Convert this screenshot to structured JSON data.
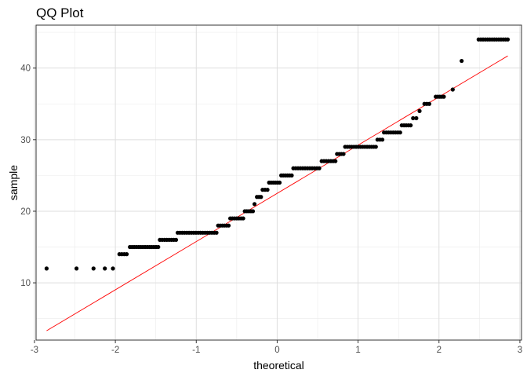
{
  "chart_data": {
    "type": "scatter",
    "title": "QQ Plot",
    "xlabel": "theoretical",
    "ylabel": "sample",
    "xlim": [
      -2.98,
      3.02
    ],
    "ylim": [
      2.0,
      46.0
    ],
    "x_ticks": [
      -3,
      -2,
      -1,
      0,
      1,
      2,
      3
    ],
    "y_ticks": [
      10,
      20,
      30,
      40
    ],
    "grid": true,
    "legend": "none",
    "point_color": "#000000",
    "line_color": "#ff0000",
    "reference_line": {
      "x": [
        -2.85,
        2.85
      ],
      "y": [
        3.3,
        41.7
      ]
    },
    "series": [
      {
        "clusters": [
          {
            "x": [
              -2.85,
              -2.85
            ],
            "y": 12
          },
          {
            "x": [
              -2.48,
              -2.48
            ],
            "y": 12
          },
          {
            "x": [
              -2.27,
              -2.27
            ],
            "y": 12
          },
          {
            "x": [
              -2.13,
              -2.13
            ],
            "y": 12
          },
          {
            "x": [
              -2.03,
              -2.03
            ],
            "y": 12
          },
          {
            "x": [
              -1.95,
              -1.86
            ],
            "y": 14
          },
          {
            "x": [
              -1.82,
              -1.47
            ],
            "y": 15
          },
          {
            "x": [
              -1.45,
              -1.25
            ],
            "y": 16
          },
          {
            "x": [
              -1.23,
              -0.75
            ],
            "y": 17
          },
          {
            "x": [
              -0.73,
              -0.6
            ],
            "y": 18
          },
          {
            "x": [
              -0.58,
              -0.42
            ],
            "y": 19
          },
          {
            "x": [
              -0.4,
              -0.3
            ],
            "y": 20
          },
          {
            "x": [
              -0.28,
              -0.28
            ],
            "y": 21
          },
          {
            "x": [
              -0.25,
              -0.2
            ],
            "y": 22
          },
          {
            "x": [
              -0.18,
              -0.12
            ],
            "y": 23
          },
          {
            "x": [
              -0.1,
              0.03
            ],
            "y": 24
          },
          {
            "x": [
              0.05,
              0.18
            ],
            "y": 25
          },
          {
            "x": [
              0.2,
              0.52
            ],
            "y": 26
          },
          {
            "x": [
              0.55,
              0.72
            ],
            "y": 27
          },
          {
            "x": [
              0.74,
              0.82
            ],
            "y": 28
          },
          {
            "x": [
              0.84,
              1.22
            ],
            "y": 29
          },
          {
            "x": [
              1.24,
              1.3
            ],
            "y": 30
          },
          {
            "x": [
              1.32,
              1.52
            ],
            "y": 31
          },
          {
            "x": [
              1.54,
              1.65
            ],
            "y": 32
          },
          {
            "x": [
              1.68,
              1.72
            ],
            "y": 33
          },
          {
            "x": [
              1.76,
              1.76
            ],
            "y": 34
          },
          {
            "x": [
              1.82,
              1.88
            ],
            "y": 35
          },
          {
            "x": [
              1.96,
              2.06
            ],
            "y": 36
          },
          {
            "x": [
              2.17,
              2.17
            ],
            "y": 37
          },
          {
            "x": [
              2.28,
              2.28
            ],
            "y": 41
          },
          {
            "x": [
              2.49,
              2.85
            ],
            "y": 44
          }
        ]
      }
    ]
  }
}
